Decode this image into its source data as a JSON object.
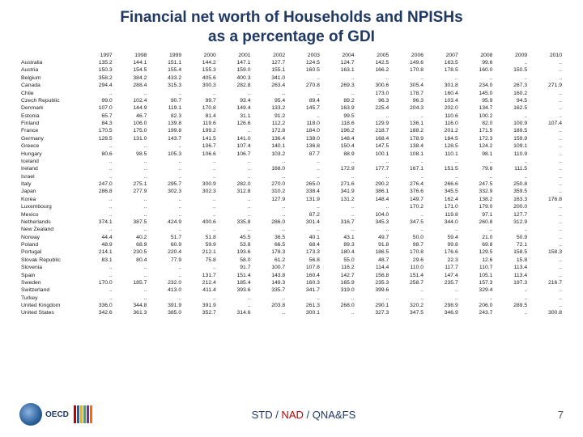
{
  "title_line1": "Financial net worth of Households and NPISHs",
  "title_line2": "as a percentage of GDI",
  "years": [
    "1997",
    "1998",
    "1999",
    "2000",
    "2001",
    "2002",
    "2003",
    "2004",
    "2005",
    "2006",
    "2007",
    "2008",
    "2009",
    "2010"
  ],
  "countries": [
    "Australia",
    "Austria",
    "Belgium",
    "Canada",
    "Chile",
    "Czech Republic",
    "Denmark",
    "Estonia",
    "Finland",
    "France",
    "Germany",
    "Greece",
    "Hungary",
    "Iceland",
    "Ireland",
    "Israel",
    "Italy",
    "Japan",
    "Korea",
    "Luxembourg",
    "Mexico",
    "Netherlands",
    "New Zealand",
    "Norway",
    "Poland",
    "Portugal",
    "Slovak Republic",
    "Slovenia",
    "Spain",
    "Sweden",
    "Switzerland",
    "Turkey",
    "United Kingdom",
    "United States"
  ],
  "values": [
    [
      "135.2",
      "144.1",
      "151.1",
      "144.2",
      "147.1",
      "127.7",
      "124.5",
      "124.7",
      "142.5",
      "149.6",
      "163.5",
      "99.6",
      "..",
      ".."
    ],
    [
      "150.3",
      "154.5",
      "155.4",
      "155.3",
      "159.0",
      "155.1",
      "160.5",
      "163.1",
      "166.2",
      "170.8",
      "178.5",
      "160.0",
      "150.5",
      ".."
    ],
    [
      "358.2",
      "384.2",
      "433.2",
      "405.6",
      "400.3",
      "341.0",
      "..",
      "..",
      "..",
      "..",
      "..",
      "..",
      "..",
      ".."
    ],
    [
      "294.4",
      "288.4",
      "315.3",
      "300.3",
      "282.8",
      "263.4",
      "270.8",
      "269.3",
      "300.6",
      "305.4",
      "301.8",
      "234.0",
      "267.3",
      "271.9"
    ],
    [
      "..",
      "..",
      "..",
      "..",
      "..",
      "..",
      "..",
      "..",
      "173.0",
      "178.7",
      "160.4",
      "145.0",
      "160.2",
      ".."
    ],
    [
      "99.0",
      "102.4",
      "90.7",
      "99.7",
      "93.4",
      "95.4",
      "89.4",
      "89.2",
      "96.3",
      "96.3",
      "103.4",
      "95.9",
      "94.5",
      ".."
    ],
    [
      "107.0",
      "144.9",
      "119.1",
      "170.8",
      "149.4",
      "133.2",
      "145.7",
      "163.9",
      "225.4",
      "204.3",
      "202.0",
      "134.7",
      "162.5",
      ".."
    ],
    [
      "65.7",
      "46.7",
      "82.3",
      "81.4",
      "31.1",
      "91.2",
      "..",
      "99.5",
      "..",
      "..",
      "110.6",
      "100.2",
      "..",
      ".."
    ],
    [
      "84.3",
      "106.0",
      "139.8",
      "119.6",
      "126.6",
      "112.2",
      "118.0",
      "118.6",
      "129.9",
      "136.1",
      "116.0",
      "82.0",
      "100.9",
      "107.4"
    ],
    [
      "170.5",
      "175.0",
      "199.8",
      "199.2",
      "..",
      "172.8",
      "184.0",
      "196.2",
      "218.7",
      "188.2",
      "201.2",
      "171.5",
      "189.5",
      ".."
    ],
    [
      "128.5",
      "131.0",
      "143.7",
      "141.5",
      "141.0",
      "136.4",
      "138.0",
      "148.4",
      "168.4",
      "178.9",
      "184.5",
      "172.3",
      "159.9",
      ".."
    ],
    [
      "..",
      "..",
      "..",
      "106.7",
      "107.4",
      "140.1",
      "136.8",
      "150.4",
      "147.5",
      "138.4",
      "128.5",
      "124.2",
      "109.1",
      ".."
    ],
    [
      "80.6",
      "98.5",
      "105.3",
      "106.6",
      "106.7",
      "103.2",
      "87.7",
      "88.9",
      "100.1",
      "108.1",
      "110.1",
      "98.1",
      "110.9",
      ".."
    ],
    [
      "..",
      "..",
      "..",
      "..",
      "..",
      "..",
      "..",
      "..",
      "..",
      "..",
      "..",
      "..",
      "..",
      ".."
    ],
    [
      "..",
      "..",
      "..",
      "..",
      "..",
      "168.0",
      "..",
      "172.9",
      "177.7",
      "167.1",
      "151.5",
      "79.8",
      "111.5",
      ".."
    ],
    [
      "..",
      "..",
      "..",
      "..",
      "..",
      "..",
      "..",
      "..",
      "..",
      "..",
      "..",
      "..",
      "..",
      ".."
    ],
    [
      "247.0",
      "275.1",
      "295.7",
      "300.9",
      "282.0",
      "270.0",
      "265.0",
      "271.6",
      "290.2",
      "276.4",
      "266.6",
      "247.5",
      "250.8",
      ".."
    ],
    [
      "286.8",
      "277.9",
      "302.3",
      "302.3",
      "312.8",
      "310.2",
      "338.4",
      "341.9",
      "386.1",
      "376.6",
      "345.5",
      "332.9",
      "359.5",
      ".."
    ],
    [
      "..",
      "..",
      "..",
      "..",
      "..",
      "127.9",
      "131.9",
      "131.2",
      "148.4",
      "149.7",
      "162.4",
      "138.2",
      "163.3",
      "176.8"
    ],
    [
      "..",
      "..",
      "..",
      "..",
      "..",
      "..",
      "..",
      "..",
      "..",
      "170.2",
      "171.0",
      "179.0",
      "200.0",
      ".."
    ],
    [
      "..",
      "..",
      "..",
      "..",
      "..",
      "..",
      "87.2",
      "..",
      "104.0",
      "..",
      "119.8",
      "97.1",
      "127.7",
      ".."
    ],
    [
      "374.1",
      "387.5",
      "424.9",
      "400.6",
      "335.8",
      "286.0",
      "301.4",
      "316.7",
      "345.3",
      "347.5",
      "344.0",
      "260.8",
      "312.9",
      ".."
    ],
    [
      "..",
      "..",
      "..",
      "..",
      "..",
      "..",
      "..",
      "..",
      "..",
      "..",
      "..",
      "..",
      "..",
      ".."
    ],
    [
      "44.4",
      "40.2",
      "51.7",
      "51.8",
      "45.5",
      "36.5",
      "40.1",
      "43.1",
      "49.7",
      "50.0",
      "59.4",
      "21.0",
      "50.9",
      ".."
    ],
    [
      "48.9",
      "68.9",
      "60.9",
      "59.9",
      "53.8",
      "66.5",
      "68.4",
      "89.3",
      "91.8",
      "98.7",
      "99.8",
      "69.8",
      "72.1",
      ".."
    ],
    [
      "214.1",
      "230.5",
      "220.4",
      "212.1",
      "193.6",
      "178.3",
      "173.3",
      "180.4",
      "186.5",
      "170.8",
      "176.6",
      "129.5",
      "158.5",
      "158.3"
    ],
    [
      "83.1",
      "80.4",
      "77.9",
      "75.8",
      "58.0",
      "61.2",
      "56.8",
      "55.0",
      "48.7",
      "29.6",
      "22.3",
      "12.6",
      "15.8",
      ".."
    ],
    [
      "..",
      "..",
      "..",
      "..",
      "91.7",
      "100.7",
      "107.8",
      "116.2",
      "114.4",
      "110.0",
      "117.7",
      "110.7",
      "113.4",
      ".."
    ],
    [
      "..",
      "..",
      "..",
      "131.7",
      "151.4",
      "143.8",
      "160.4",
      "142.7",
      "156.8",
      "151.4",
      "147.4",
      "105.1",
      "113.4",
      ".."
    ],
    [
      "170.0",
      "185.7",
      "232.0",
      "212.4",
      "185.4",
      "149.3",
      "160.3",
      "165.9",
      "235.3",
      "258.7",
      "235.7",
      "157.3",
      "197.3",
      "216.7"
    ],
    [
      "..",
      "..",
      "413.0",
      "411.4",
      "393.6",
      "335.7",
      "341.7",
      "319.0",
      "399.6",
      "..",
      "..",
      "329.4",
      "..",
      ".."
    ],
    [
      "..",
      "..",
      "..",
      "..",
      "..",
      "..",
      "..",
      "..",
      "..",
      "..",
      "..",
      "..",
      "..",
      ".."
    ],
    [
      "336.0",
      "344.8",
      "391.9",
      "391.9",
      "..",
      "203.8",
      "261.3",
      "268.0",
      "290.1",
      "320.2",
      "298.9",
      "206.0",
      "289.5",
      ".."
    ],
    [
      "342.6",
      "361.3",
      "385.0",
      "352.7",
      "314.6",
      "..",
      "300.1",
      "..",
      "327.3",
      "347.5",
      "346.9",
      "243.7",
      "..",
      "300.8"
    ]
  ],
  "footer_std": "STD",
  "footer_nad": "NAD",
  "footer_qna": "QNA&FS",
  "footer_sep": " / ",
  "pagenum": "7",
  "logo_text": "OECD",
  "fifty_colors": [
    "#c00000",
    "#2a6099",
    "#e6b800",
    "#4aa564",
    "#7030a0",
    "#ff6600"
  ],
  "title_color": "#1f3864"
}
